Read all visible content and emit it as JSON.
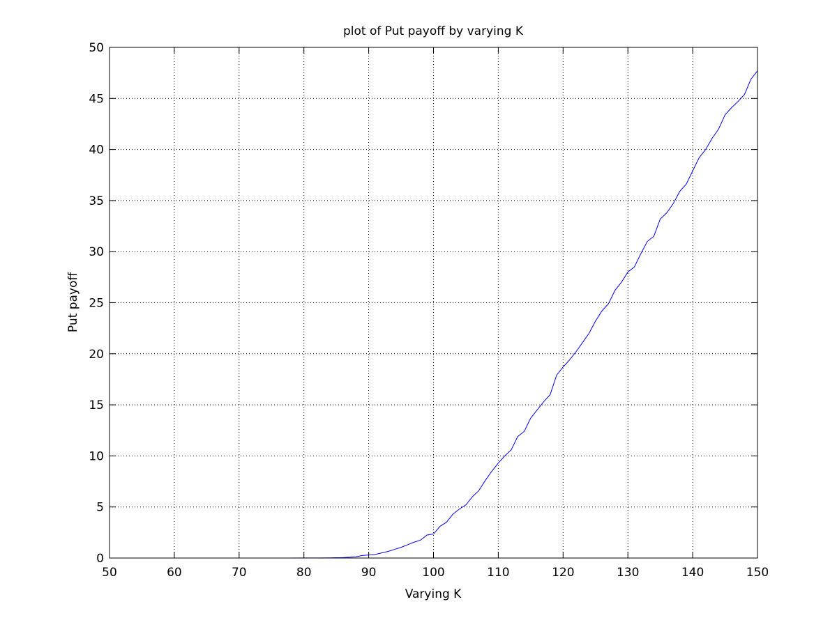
{
  "chart_data": {
    "type": "line",
    "title": "plot of Put payoff by varying K",
    "xlabel": "Varying K",
    "ylabel": "Put payoff",
    "xlim": [
      50,
      150
    ],
    "ylim": [
      0,
      50
    ],
    "xticks": [
      50,
      60,
      70,
      80,
      90,
      100,
      110,
      120,
      130,
      140,
      150
    ],
    "yticks": [
      0,
      5,
      10,
      15,
      20,
      25,
      30,
      35,
      40,
      45,
      50
    ],
    "grid": true,
    "series": [
      {
        "color": "#0000ff",
        "segments": [
          {
            "x": [
              50,
              50.5
            ],
            "y": [
              0,
              0
            ]
          },
          {
            "x": [
              77.5,
              80,
              82,
              84,
              85,
              86,
              87,
              88,
              89,
              90,
              91,
              92,
              93,
              94,
              95,
              96,
              97,
              98,
              99,
              100,
              101,
              102,
              103,
              104,
              105,
              106,
              107,
              108,
              109,
              110,
              111,
              112,
              113,
              114,
              115,
              116,
              117,
              118,
              119,
              120,
              121,
              122,
              123,
              124,
              125,
              126,
              127,
              128,
              129,
              130,
              131,
              132,
              133,
              134,
              135,
              136,
              137,
              138,
              139,
              140,
              141,
              142,
              143,
              144,
              145,
              146,
              147,
              148,
              149,
              150
            ],
            "y": [
              0,
              0.01,
              0.01,
              0.02,
              0.03,
              0.04,
              0.08,
              0.12,
              0.25,
              0.3,
              0.35,
              0.5,
              0.65,
              0.85,
              1.05,
              1.3,
              1.55,
              1.75,
              2.25,
              2.35,
              3.1,
              3.5,
              4.3,
              4.8,
              5.2,
              6.0,
              6.6,
              7.6,
              8.5,
              9.3,
              10.0,
              10.6,
              11.9,
              12.4,
              13.7,
              14.5,
              15.3,
              16.0,
              17.9,
              18.7,
              19.4,
              20.2,
              21.1,
              22.0,
              23.2,
              24.2,
              24.9,
              26.2,
              27.0,
              28.0,
              28.5,
              29.8,
              31.0,
              31.5,
              33.2,
              33.8,
              34.7,
              35.9,
              36.6,
              37.9,
              39.2,
              40.0,
              41.1,
              42.0,
              43.4,
              44.1,
              44.7,
              45.4,
              46.9,
              47.7
            ]
          }
        ]
      }
    ]
  }
}
